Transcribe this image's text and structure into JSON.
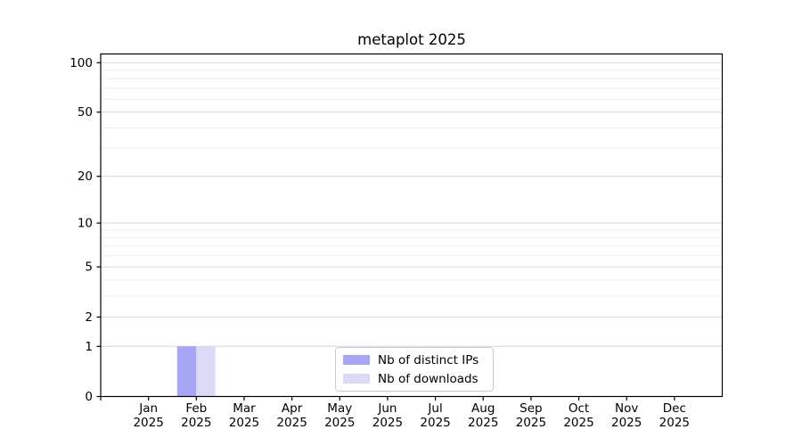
{
  "title": "metaplot 2025",
  "chart_data": {
    "type": "bar",
    "title": "metaplot 2025",
    "categories": [
      "Jan",
      "Feb",
      "Mar",
      "Apr",
      "May",
      "Jun",
      "Jul",
      "Aug",
      "Sep",
      "Oct",
      "Nov",
      "Dec"
    ],
    "year_label": "2025",
    "series": [
      {
        "name": "Nb of distinct IPs",
        "color": "#a6a6f4",
        "values": [
          0,
          1,
          0,
          0,
          0,
          0,
          0,
          0,
          0,
          0,
          0,
          0
        ]
      },
      {
        "name": "Nb of downloads",
        "color": "#dbdbf7",
        "values": [
          0,
          1,
          0,
          0,
          0,
          0,
          0,
          0,
          0,
          0,
          0,
          0
        ]
      }
    ],
    "yscale": "log1p",
    "ylim": [
      0,
      113
    ],
    "yticks": [
      0,
      1,
      2,
      5,
      10,
      20,
      50,
      100
    ],
    "minor_gridlines": [
      3,
      4,
      6,
      7,
      8,
      9,
      30,
      40,
      60,
      70,
      80,
      90
    ],
    "grid": "horizontal",
    "legend_position": "lower center",
    "colors": {
      "axis": "#000000",
      "tick_label": "#000000",
      "major_grid": "#d9d9d9",
      "minor_grid": "#ededed",
      "background": "#ffffff"
    }
  }
}
